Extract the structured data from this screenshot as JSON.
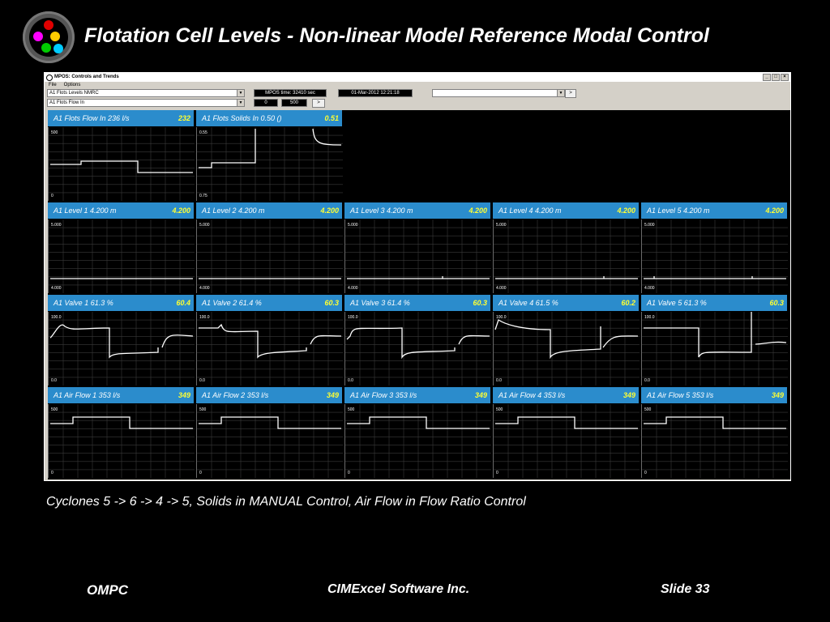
{
  "slide": {
    "title": "Flotation Cell Levels - Non-linear Model Reference Modal Control",
    "caption": "Cyclones 5 -> 6 -> 4 -> 5, Solids in MANUAL Control,  Air Flow in Flow Ratio Control",
    "footer_left": "OMPC",
    "footer_center": "CIMExcel Software Inc.",
    "footer_right": "Slide 33",
    "logo_dot_colors": [
      "#e00000",
      "#ffcc00",
      "#ff00ff",
      "#00cc00",
      "#00ccff"
    ]
  },
  "window": {
    "title": "MPOS: Controls and Trends",
    "menu": [
      "File",
      "Options"
    ],
    "controls": {
      "group_select": "A1 Flots Levels NMRC",
      "tag_select": "A1 Flots Flow In",
      "time_label": "MPOS time: 32410  sec",
      "date_label": "01-Mar-2012  12:21:18",
      "value_min": "0",
      "value_max": "500",
      "go_button": ">",
      "go_button_2": ">",
      "go_button_3": ">",
      "right_select": ""
    }
  },
  "panels": [
    {
      "label": "A1 Flots Flow In   236  l/s",
      "value": "232",
      "ymax": "500",
      "ymin": "0"
    },
    {
      "label": "A1 Flots Solids In   0.50  ()",
      "value": "0.51",
      "ymax": "0.55",
      "ymin": "0.75"
    },
    {
      "label": "A1 Level 1   4.200  m",
      "value": "4.200",
      "ymax": "5.000",
      "ymin": "4.000"
    },
    {
      "label": "A1 Level 2   4.200  m",
      "value": "4.200",
      "ymax": "5.000",
      "ymin": "4.000"
    },
    {
      "label": "A1 Level 3   4.200  m",
      "value": "4.200",
      "ymax": "5.000",
      "ymin": "4.000"
    },
    {
      "label": "A1 Level 4   4.200  m",
      "value": "4.200",
      "ymax": "5.000",
      "ymin": "4.000"
    },
    {
      "label": "A1 Level 5   4.200  m",
      "value": "4.200",
      "ymax": "5.000",
      "ymin": "4.000"
    },
    {
      "label": "A1 Valve 1   61.3  %",
      "value": "60.4",
      "ymax": "100.0",
      "ymin": "0.0"
    },
    {
      "label": "A1 Valve 2   61.4  %",
      "value": "60.3",
      "ymax": "100.0",
      "ymin": "0.0"
    },
    {
      "label": "A1 Valve 3   61.4  %",
      "value": "60.3",
      "ymax": "100.0",
      "ymin": "0.0"
    },
    {
      "label": "A1 Valve 4   61.5  %",
      "value": "60.2",
      "ymax": "100.0",
      "ymin": "0.0"
    },
    {
      "label": "A1 Valve 5   61.3  %",
      "value": "60.3",
      "ymax": "100.0",
      "ymin": "0.0"
    },
    {
      "label": "A1 Air Flow 1   353  l/s",
      "value": "349",
      "ymax": "500",
      "ymin": "0"
    },
    {
      "label": "A1 Air Flow 2   353  l/s",
      "value": "349",
      "ymax": "500",
      "ymin": "0"
    },
    {
      "label": "A1 Air Flow 3   353  l/s",
      "value": "349",
      "ymax": "500",
      "ymin": "0"
    },
    {
      "label": "A1 Air Flow 4   353  l/s",
      "value": "349",
      "ymax": "500",
      "ymin": "0"
    },
    {
      "label": "A1 Air Flow 5   353  l/s",
      "value": "349",
      "ymax": "500",
      "ymin": "0"
    }
  ]
}
